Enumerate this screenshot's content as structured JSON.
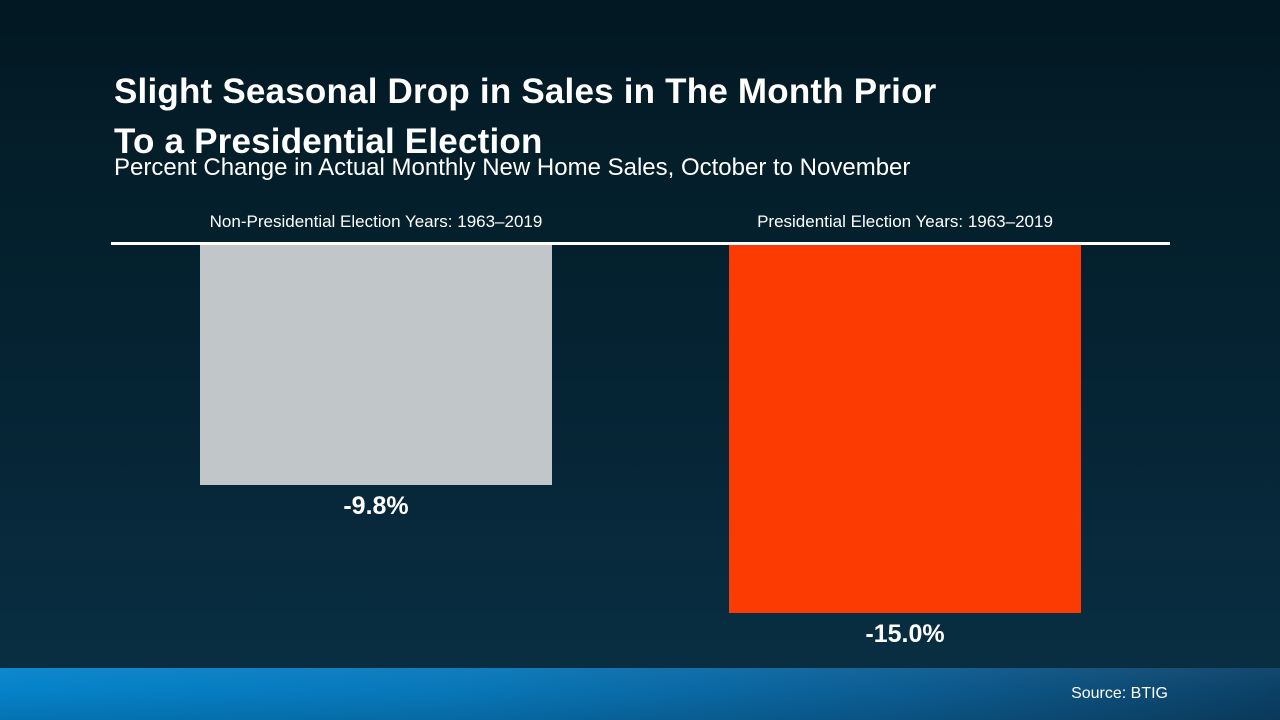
{
  "header": {
    "title_lines": [
      "Slight Seasonal Drop in Sales in The Month Prior",
      "To a Presidential Election"
    ],
    "subtitle": "Percent Change in Actual Monthly New Home Sales, October to November"
  },
  "chart_data": {
    "type": "bar",
    "title": "Slight Seasonal Drop in Sales in The Month Prior To a Presidential Election",
    "subtitle": "Percent Change in Actual Monthly New Home Sales, October to November",
    "categories": [
      "Non-Presidential Election Years: 1963–2019",
      "Presidential Election Years: 1963–2019"
    ],
    "values": [
      -9.8,
      -15.0
    ],
    "value_labels": [
      "-9.8%",
      "-15.0%"
    ],
    "bar_colors": [
      "#c1c6c8",
      "#fb3b01"
    ],
    "baseline": 0,
    "ylim": [
      -15.0,
      0
    ],
    "orientation": "vertical",
    "grid": false,
    "legend": "none"
  },
  "footer": {
    "source": "Source: BTIG"
  },
  "colors": {
    "background_top": "#021822",
    "background_bottom": "#0a3044",
    "text": "#ffffff",
    "baseline_rule": "#ffffff",
    "bar_non_presidential": "#c1c6c8",
    "bar_presidential": "#fb3b01",
    "footer_left": "#0583cb",
    "footer_right": "#0b4066"
  }
}
